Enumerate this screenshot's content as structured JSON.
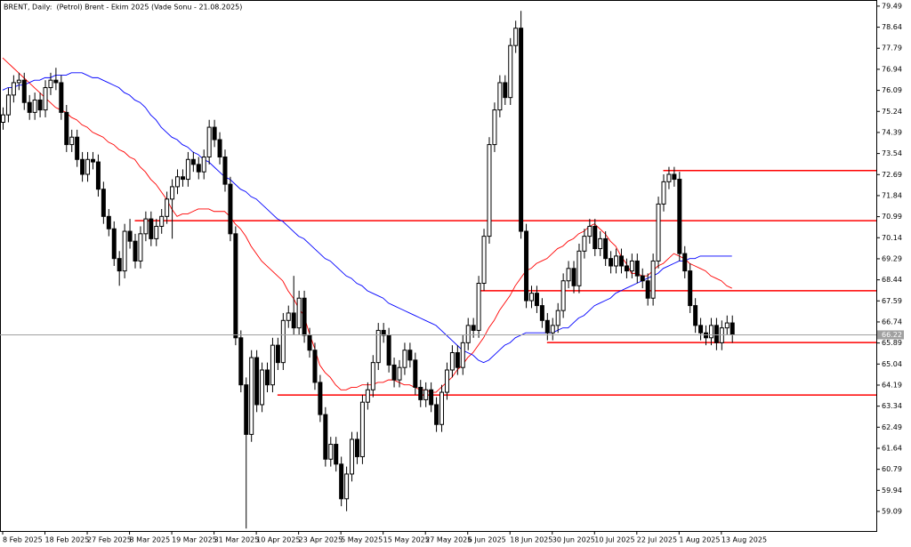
{
  "chart_data": {
    "type": "candlestick",
    "title": "BRENT, Daily:  (Petrol) Brent - Ekim 2025 (Vade Sonu - 21.08.2025)",
    "x": [
      "8 Feb 2025",
      null,
      null,
      null,
      null,
      null,
      null,
      null,
      "18 Feb 2025",
      null,
      null,
      null,
      null,
      null,
      null,
      null,
      "27 Feb 2025",
      null,
      null,
      null,
      null,
      null,
      null,
      null,
      "8 Mar 2025",
      null,
      null,
      null,
      null,
      null,
      null,
      null,
      "19 Mar 2025",
      null,
      null,
      null,
      null,
      null,
      null,
      null,
      "31 Mar 2025",
      null,
      null,
      null,
      null,
      null,
      null,
      null,
      "10 Apr 2025",
      null,
      null,
      null,
      null,
      null,
      null,
      null,
      "23 Apr 2025",
      null,
      null,
      null,
      null,
      null,
      null,
      null,
      "5 May 2025",
      null,
      null,
      null,
      null,
      null,
      null,
      null,
      "15 May 2025",
      null,
      null,
      null,
      null,
      null,
      null,
      null,
      "27 May 2025",
      null,
      null,
      null,
      null,
      null,
      null,
      null,
      "6 Jun 2025",
      null,
      null,
      null,
      null,
      null,
      null,
      null,
      "18 Jun 2025",
      null,
      null,
      null,
      null,
      null,
      null,
      null,
      "30 Jun 2025",
      null,
      null,
      null,
      null,
      null,
      null,
      null,
      "10 Jul 2025",
      null,
      null,
      null,
      null,
      null,
      null,
      null,
      "22 Jul 2025",
      null,
      null,
      null,
      null,
      null,
      null,
      null,
      "1 Aug 2025",
      null,
      null,
      null,
      null,
      null,
      null,
      null,
      "13 Aug 2025",
      null,
      null
    ],
    "open": [
      74.8,
      75.1,
      75.9,
      76.4,
      76.5,
      75.6,
      75.2,
      75.7,
      75.3,
      76.2,
      76.5,
      76.4,
      75.2,
      73.9,
      74.2,
      73.3,
      72.7,
      73.3,
      73.2,
      72.1,
      71.0,
      70.5,
      69.3,
      68.8,
      70.4,
      70.0,
      69.2,
      70.3,
      70.9,
      70.1,
      70.6,
      71.0,
      71.7,
      72.2,
      72.6,
      72.5,
      73.3,
      73.1,
      72.8,
      73.4,
      74.6,
      74.1,
      73.4,
      72.3,
      70.3,
      66.1,
      64.2,
      62.2,
      65.3,
      63.4,
      64.8,
      64.2,
      65.8,
      65.1,
      66.8,
      67.1,
      66.5,
      67.7,
      66.2,
      65.6,
      64.3,
      63.0,
      61.2,
      61.8,
      61.0,
      59.6,
      60.6,
      62.0,
      61.3,
      63.5,
      64.0,
      65.1,
      66.4,
      66.2,
      65.0,
      64.4,
      64.9,
      65.6,
      65.2,
      64.1,
      63.6,
      64.0,
      63.4,
      62.6,
      63.9,
      64.8,
      65.5,
      64.9,
      65.9,
      66.6,
      66.4,
      68.3,
      70.2,
      73.9,
      75.3,
      76.4,
      75.8,
      77.9,
      78.6,
      70.4,
      67.6,
      67.9,
      67.4,
      66.8,
      66.3,
      66.6,
      67.2,
      68.4,
      68.9,
      68.2,
      69.6,
      70.2,
      70.6,
      69.7,
      70.1,
      69.3,
      69.0,
      69.4,
      69.0,
      68.8,
      69.2,
      68.6,
      68.4,
      67.7,
      69.2,
      71.5,
      72.4,
      72.7,
      72.5,
      69.5,
      68.8,
      67.4,
      66.6,
      66.3,
      66.1,
      66.6,
      65.9,
      66.5,
      66.7
    ],
    "high": [
      75.4,
      76.2,
      76.7,
      76.8,
      76.8,
      75.9,
      76.0,
      76.0,
      76.5,
      76.8,
      77.0,
      76.7,
      75.5,
      74.5,
      74.5,
      73.6,
      73.6,
      73.6,
      73.5,
      72.4,
      71.3,
      70.8,
      69.6,
      70.7,
      70.9,
      70.3,
      70.6,
      71.2,
      71.2,
      70.9,
      71.3,
      72.0,
      72.5,
      72.9,
      72.9,
      73.6,
      73.6,
      73.4,
      73.7,
      74.9,
      74.9,
      74.4,
      73.7,
      72.6,
      70.6,
      66.4,
      64.5,
      65.6,
      65.6,
      65.1,
      65.1,
      66.1,
      66.1,
      67.1,
      67.4,
      68.6,
      68.0,
      68.0,
      66.5,
      65.9,
      64.6,
      63.3,
      62.1,
      62.1,
      61.3,
      60.9,
      62.3,
      62.3,
      63.8,
      64.3,
      65.4,
      66.7,
      66.7,
      66.5,
      65.3,
      65.2,
      65.9,
      65.9,
      65.5,
      64.4,
      64.3,
      64.3,
      63.7,
      64.2,
      65.1,
      65.8,
      65.8,
      66.2,
      66.9,
      66.9,
      68.6,
      70.5,
      74.2,
      75.6,
      76.7,
      76.7,
      78.2,
      78.9,
      79.3,
      70.7,
      68.2,
      68.2,
      67.7,
      67.1,
      66.9,
      67.5,
      68.7,
      69.2,
      69.2,
      69.9,
      70.5,
      70.9,
      70.9,
      70.4,
      70.4,
      69.6,
      69.7,
      69.7,
      69.3,
      69.5,
      69.5,
      68.9,
      68.7,
      69.5,
      71.8,
      72.7,
      73.0,
      73.0,
      72.8,
      69.8,
      69.1,
      67.7,
      66.9,
      66.6,
      66.9,
      66.9,
      66.8,
      67.0,
      67.0
    ],
    "low": [
      74.5,
      74.8,
      75.6,
      76.1,
      75.3,
      74.9,
      74.9,
      75.0,
      75.0,
      75.9,
      76.1,
      74.9,
      73.6,
      73.6,
      73.0,
      72.4,
      72.4,
      72.9,
      71.8,
      70.7,
      70.2,
      69.0,
      68.2,
      68.5,
      69.7,
      68.9,
      68.9,
      70.0,
      69.8,
      69.8,
      70.3,
      70.7,
      70.1,
      71.9,
      72.2,
      72.2,
      72.8,
      72.5,
      72.5,
      73.1,
      73.8,
      73.1,
      72.0,
      70.0,
      65.8,
      63.9,
      58.4,
      61.9,
      63.1,
      63.1,
      63.9,
      63.9,
      64.8,
      64.8,
      66.5,
      66.2,
      66.2,
      65.9,
      65.3,
      64.0,
      62.7,
      60.9,
      60.9,
      60.7,
      59.3,
      59.1,
      60.3,
      61.0,
      61.0,
      63.2,
      63.7,
      64.8,
      65.9,
      64.7,
      64.1,
      64.1,
      64.6,
      64.9,
      63.8,
      63.3,
      63.3,
      63.1,
      62.3,
      62.3,
      63.6,
      64.5,
      64.6,
      64.6,
      65.6,
      66.1,
      66.1,
      68.0,
      69.9,
      73.6,
      75.0,
      75.5,
      75.5,
      77.6,
      70.1,
      67.3,
      67.3,
      67.1,
      66.5,
      66.0,
      66.0,
      66.3,
      66.9,
      68.1,
      67.9,
      67.9,
      69.3,
      69.9,
      69.4,
      69.4,
      69.0,
      68.7,
      68.7,
      68.7,
      68.5,
      68.5,
      68.3,
      68.1,
      67.4,
      67.4,
      68.9,
      71.2,
      72.1,
      72.2,
      69.2,
      68.5,
      67.1,
      66.3,
      66.0,
      65.8,
      65.8,
      65.6,
      65.6,
      66.2,
      65.9
    ],
    "close": [
      75.1,
      75.9,
      76.4,
      76.5,
      75.6,
      75.2,
      75.7,
      75.3,
      76.2,
      76.5,
      76.4,
      75.2,
      73.9,
      74.2,
      73.3,
      72.7,
      73.3,
      73.2,
      72.1,
      71.0,
      70.5,
      69.3,
      68.8,
      70.4,
      70.0,
      69.2,
      70.3,
      70.9,
      70.1,
      70.6,
      71.0,
      71.7,
      72.2,
      72.6,
      72.5,
      73.3,
      73.1,
      72.8,
      73.4,
      74.6,
      74.1,
      73.4,
      72.3,
      70.3,
      66.1,
      64.2,
      62.2,
      65.3,
      63.4,
      64.8,
      64.2,
      65.8,
      65.1,
      66.8,
      67.1,
      66.5,
      67.7,
      66.2,
      65.6,
      64.3,
      63.0,
      61.2,
      61.8,
      61.0,
      59.6,
      60.6,
      62.0,
      61.3,
      63.5,
      64.0,
      65.1,
      66.4,
      66.2,
      65.0,
      64.4,
      64.9,
      65.6,
      65.2,
      64.1,
      63.6,
      64.0,
      63.4,
      62.6,
      63.9,
      64.8,
      65.5,
      64.9,
      65.9,
      66.6,
      66.4,
      68.3,
      70.2,
      73.9,
      75.3,
      76.4,
      75.8,
      77.9,
      78.6,
      70.4,
      67.6,
      67.9,
      67.4,
      66.8,
      66.3,
      66.6,
      67.2,
      68.4,
      68.9,
      68.2,
      69.6,
      70.2,
      70.6,
      69.7,
      70.1,
      69.3,
      69.0,
      69.4,
      69.0,
      68.8,
      69.2,
      68.6,
      68.4,
      67.7,
      69.2,
      71.5,
      72.4,
      72.7,
      72.5,
      69.5,
      68.8,
      67.4,
      66.6,
      66.3,
      66.1,
      66.6,
      65.9,
      66.5,
      66.7,
      66.22
    ],
    "moving_averages": [
      {
        "color": "#ff0000",
        "values": [
          77.4,
          77.2,
          77.0,
          76.8,
          76.6,
          76.4,
          76.2,
          76.0,
          75.8,
          75.6,
          75.4,
          75.3,
          75.2,
          75.0,
          74.9,
          74.7,
          74.6,
          74.4,
          74.3,
          74.2,
          74.0,
          73.9,
          73.7,
          73.6,
          73.4,
          73.3,
          73.0,
          72.8,
          72.5,
          72.3,
          72.0,
          71.7,
          71.3,
          71.0,
          71.1,
          71.1,
          71.2,
          71.3,
          71.3,
          71.3,
          71.2,
          71.2,
          71.2,
          71.0,
          70.7,
          70.5,
          70.2,
          69.8,
          69.5,
          69.2,
          69.0,
          68.8,
          68.6,
          68.4,
          68.0,
          67.7,
          67.3,
          67.0,
          66.3,
          65.7,
          65.0,
          64.7,
          64.5,
          64.2,
          64.0,
          64.0,
          64.1,
          64.1,
          64.2,
          64.2,
          64.2,
          64.3,
          64.3,
          64.4,
          64.4,
          64.3,
          64.2,
          64.2,
          64.1,
          64.0,
          64.0,
          63.9,
          63.9,
          64.1,
          64.3,
          64.5,
          64.8,
          65.0,
          65.3,
          65.5,
          65.8,
          66.1,
          66.5,
          66.8,
          67.2,
          67.5,
          67.8,
          68.2,
          68.5,
          68.8,
          68.9,
          69.1,
          69.2,
          69.3,
          69.5,
          69.7,
          69.8,
          70.0,
          70.1,
          70.3,
          70.4,
          70.6,
          70.7,
          70.5,
          70.3,
          70.0,
          69.8,
          69.4,
          69.1,
          68.7,
          68.7,
          68.6,
          68.6,
          68.8,
          69.0,
          69.1,
          69.3,
          69.5,
          69.4,
          69.3,
          69.1,
          69.0,
          68.9,
          68.8,
          68.6,
          68.5,
          68.4,
          68.2,
          68.1
        ]
      },
      {
        "color": "#0000ff",
        "values": [
          76.1,
          76.2,
          76.2,
          76.3,
          76.3,
          76.4,
          76.5,
          76.5,
          76.6,
          76.6,
          76.7,
          76.7,
          76.7,
          76.8,
          76.8,
          76.8,
          76.7,
          76.6,
          76.6,
          76.5,
          76.4,
          76.3,
          76.2,
          76.0,
          75.9,
          75.7,
          75.6,
          75.4,
          75.1,
          74.9,
          74.6,
          74.4,
          74.2,
          74.1,
          73.9,
          73.8,
          73.6,
          73.5,
          73.3,
          73.2,
          73.0,
          72.8,
          72.6,
          72.5,
          72.3,
          72.1,
          72.0,
          71.8,
          71.7,
          71.5,
          71.3,
          71.1,
          70.9,
          70.8,
          70.6,
          70.4,
          70.2,
          70.1,
          69.9,
          69.7,
          69.5,
          69.3,
          69.2,
          69.0,
          68.8,
          68.6,
          68.5,
          68.3,
          68.2,
          68.0,
          67.9,
          67.8,
          67.7,
          67.5,
          67.4,
          67.3,
          67.2,
          67.1,
          67.0,
          66.9,
          66.8,
          66.7,
          66.6,
          66.4,
          66.2,
          66.0,
          65.8,
          65.6,
          65.5,
          65.4,
          65.2,
          65.1,
          65.2,
          65.4,
          65.6,
          65.8,
          65.9,
          66.1,
          66.2,
          66.3,
          66.3,
          66.3,
          66.3,
          66.3,
          66.3,
          66.4,
          66.5,
          66.5,
          66.7,
          66.9,
          67.0,
          67.2,
          67.4,
          67.5,
          67.6,
          67.7,
          67.9,
          68.0,
          68.1,
          68.2,
          68.3,
          68.4,
          68.5,
          68.6,
          68.7,
          68.9,
          69.0,
          69.1,
          69.2,
          69.2,
          69.3,
          69.3,
          69.4,
          69.4,
          69.4,
          69.4,
          69.4,
          69.4,
          69.4
        ]
      }
    ],
    "levels": [
      {
        "value": 72.85,
        "from": 125,
        "color": "#ff0000"
      },
      {
        "value": 70.83,
        "from": 25,
        "color": "#ff0000"
      },
      {
        "value": 68.0,
        "from": 90,
        "color": "#ff0000"
      },
      {
        "value": 65.91,
        "from": 103,
        "color": "#ff0000"
      },
      {
        "value": 63.79,
        "from": 52,
        "color": "#ff0000"
      }
    ],
    "ylim": [
      58.3,
      79.63
    ],
    "yticks": [
      79.49,
      78.64,
      77.79,
      76.94,
      76.09,
      75.24,
      74.39,
      73.54,
      72.69,
      71.84,
      70.99,
      70.14,
      69.29,
      68.44,
      67.59,
      66.74,
      65.89,
      65.04,
      64.19,
      63.34,
      62.49,
      61.64,
      60.79,
      59.94,
      59.09
    ],
    "bull_color": "#ffffff",
    "bear_color": "#000000"
  }
}
